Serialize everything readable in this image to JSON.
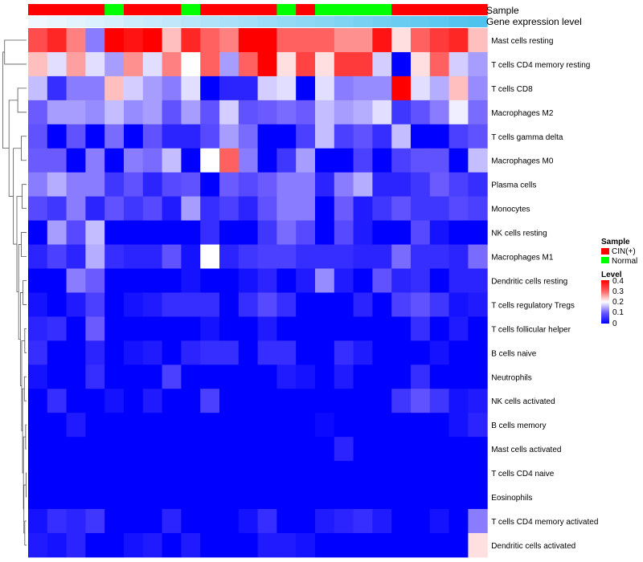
{
  "chart_data": {
    "type": "heatmap",
    "title": "",
    "annotation_tracks": [
      {
        "name": "Sample",
        "values": [
          "CIN(+)",
          "CIN(+)",
          "CIN(+)",
          "CIN(+)",
          "Normal",
          "CIN(+)",
          "CIN(+)",
          "CIN(+)",
          "Normal",
          "CIN(+)",
          "CIN(+)",
          "CIN(+)",
          "CIN(+)",
          "Normal",
          "CIN(+)",
          "Normal",
          "Normal",
          "Normal",
          "Normal",
          "CIN(+)",
          "CIN(+)",
          "CIN(+)",
          "CIN(+)",
          "CIN(+)"
        ]
      },
      {
        "name": "Gene expression level",
        "values": [
          0.0,
          0.04,
          0.09,
          0.13,
          0.17,
          0.22,
          0.26,
          0.3,
          0.35,
          0.39,
          0.43,
          0.48,
          0.52,
          0.57,
          0.61,
          0.65,
          0.7,
          0.74,
          0.78,
          0.83,
          0.87,
          0.91,
          0.96,
          1.0
        ]
      }
    ],
    "rows": [
      "Mast cells resting",
      "T cells CD4 memory resting",
      "T cells CD8",
      "Macrophages M2",
      "T cells gamma delta",
      "Macrophages M0",
      "Plasma cells",
      "Monocytes",
      "NK cells resting",
      "Macrophages M1",
      "Dendritic cells resting",
      "T cells regulatory  Tregs",
      "T cells follicular helper",
      "B cells naive",
      "Neutrophils",
      "NK cells activated",
      "B cells memory",
      "Mast cells activated",
      "T cells CD4 naive",
      "Eosinophils",
      "T cells CD4 memory activated",
      "Dendritic cells activated"
    ],
    "values": [
      [
        0.32,
        0.36,
        0.28,
        0.12,
        0.4,
        0.38,
        0.4,
        0.24,
        0.36,
        0.3,
        0.28,
        0.4,
        0.4,
        0.3,
        0.3,
        0.3,
        0.27,
        0.27,
        0.38,
        0.22,
        0.3,
        0.34,
        0.36,
        0.24
      ],
      [
        0.24,
        0.18,
        0.26,
        0.18,
        0.14,
        0.27,
        0.18,
        0.28,
        0.2,
        0.3,
        0.14,
        0.3,
        0.4,
        0.22,
        0.33,
        0.22,
        0.34,
        0.34,
        0.17,
        0.0,
        0.22,
        0.3,
        0.17,
        0.14
      ],
      [
        0.16,
        0.05,
        0.12,
        0.12,
        0.24,
        0.17,
        0.14,
        0.12,
        0.18,
        0.0,
        0.04,
        0.04,
        0.17,
        0.18,
        0.0,
        0.18,
        0.12,
        0.13,
        0.13,
        0.4,
        0.18,
        0.15,
        0.24,
        0.13
      ],
      [
        0.1,
        0.14,
        0.14,
        0.13,
        0.16,
        0.13,
        0.14,
        0.09,
        0.14,
        0.09,
        0.17,
        0.09,
        0.1,
        0.11,
        0.1,
        0.16,
        0.14,
        0.15,
        0.18,
        0.06,
        0.09,
        0.12,
        0.19,
        0.11
      ],
      [
        0.09,
        0.0,
        0.09,
        0.0,
        0.11,
        0.0,
        0.09,
        0.04,
        0.04,
        0.08,
        0.14,
        0.11,
        0.0,
        0.0,
        0.07,
        0.16,
        0.07,
        0.09,
        0.05,
        0.16,
        0.0,
        0.0,
        0.07,
        0.09
      ],
      [
        0.1,
        0.1,
        0.0,
        0.12,
        0.0,
        0.12,
        0.11,
        0.16,
        0.0,
        0.2,
        0.3,
        0.12,
        0.0,
        0.06,
        0.14,
        0.0,
        0.0,
        0.07,
        0.0,
        0.07,
        0.09,
        0.09,
        0.0,
        0.16
      ],
      [
        0.12,
        0.15,
        0.12,
        0.12,
        0.06,
        0.09,
        0.04,
        0.08,
        0.09,
        0.0,
        0.1,
        0.08,
        0.1,
        0.12,
        0.12,
        0.04,
        0.12,
        0.15,
        0.04,
        0.04,
        0.06,
        0.1,
        0.07,
        0.05
      ],
      [
        0.08,
        0.06,
        0.12,
        0.04,
        0.09,
        0.06,
        0.08,
        0.03,
        0.14,
        0.05,
        0.07,
        0.04,
        0.09,
        0.12,
        0.12,
        0.0,
        0.1,
        0.03,
        0.06,
        0.09,
        0.06,
        0.06,
        0.08,
        0.07
      ],
      [
        0.0,
        0.14,
        0.08,
        0.16,
        0.0,
        0.0,
        0.0,
        0.0,
        0.0,
        0.05,
        0.0,
        0.0,
        0.06,
        0.11,
        0.08,
        0.0,
        0.08,
        0.03,
        0.0,
        0.0,
        0.08,
        0.02,
        0.0,
        0.0
      ],
      [
        0.04,
        0.07,
        0.04,
        0.15,
        0.05,
        0.04,
        0.04,
        0.09,
        0.02,
        0.2,
        0.04,
        0.06,
        0.07,
        0.07,
        0.05,
        0.05,
        0.05,
        0.04,
        0.04,
        0.11,
        0.05,
        0.05,
        0.04,
        0.11
      ],
      [
        0.0,
        0.0,
        0.12,
        0.1,
        0.0,
        0.0,
        0.0,
        0.0,
        0.02,
        0.0,
        0.0,
        0.02,
        0.04,
        0.0,
        0.03,
        0.13,
        0.03,
        0.0,
        0.09,
        0.04,
        0.05,
        0.0,
        0.04,
        0.04
      ],
      [
        0.02,
        0.0,
        0.03,
        0.07,
        0.0,
        0.02,
        0.03,
        0.05,
        0.05,
        0.05,
        0.0,
        0.05,
        0.08,
        0.05,
        0.0,
        0.0,
        0.0,
        0.04,
        0.0,
        0.07,
        0.09,
        0.06,
        0.02,
        0.03
      ],
      [
        0.04,
        0.05,
        0.0,
        0.1,
        0.0,
        0.0,
        0.0,
        0.0,
        0.0,
        0.02,
        0.0,
        0.0,
        0.03,
        0.0,
        0.0,
        0.0,
        0.0,
        0.0,
        0.0,
        0.0,
        0.05,
        0.0,
        0.03,
        0.0
      ],
      [
        0.05,
        0.0,
        0.0,
        0.04,
        0.0,
        0.02,
        0.03,
        0.0,
        0.04,
        0.05,
        0.05,
        0.0,
        0.05,
        0.05,
        0.0,
        0.0,
        0.05,
        0.03,
        0.0,
        0.0,
        0.0,
        0.02,
        0.0,
        0.0
      ],
      [
        0.02,
        0.0,
        0.0,
        0.05,
        0.0,
        0.0,
        0.0,
        0.07,
        0.0,
        0.0,
        0.0,
        0.0,
        0.0,
        0.03,
        0.02,
        0.0,
        0.03,
        0.0,
        0.0,
        0.0,
        0.05,
        0.0,
        0.0,
        0.0
      ],
      [
        0.0,
        0.05,
        0.0,
        0.0,
        0.02,
        0.0,
        0.03,
        0.0,
        0.0,
        0.07,
        0.0,
        0.0,
        0.0,
        0.0,
        0.0,
        0.0,
        0.0,
        0.0,
        0.0,
        0.06,
        0.09,
        0.06,
        0.02,
        0.03
      ],
      [
        0.0,
        0.0,
        0.03,
        0.0,
        0.0,
        0.0,
        0.0,
        0.0,
        0.0,
        0.0,
        0.0,
        0.0,
        0.0,
        0.0,
        0.0,
        0.01,
        0.0,
        0.0,
        0.0,
        0.0,
        0.0,
        0.0,
        0.02,
        0.04
      ],
      [
        0.0,
        0.0,
        0.0,
        0.0,
        0.0,
        0.0,
        0.0,
        0.0,
        0.0,
        0.0,
        0.0,
        0.0,
        0.0,
        0.0,
        0.0,
        0.0,
        0.04,
        0.0,
        0.0,
        0.0,
        0.0,
        0.0,
        0.0,
        0.0
      ],
      [
        0.0,
        0.0,
        0.0,
        0.0,
        0.0,
        0.0,
        0.0,
        0.0,
        0.0,
        0.0,
        0.0,
        0.0,
        0.0,
        0.0,
        0.0,
        0.0,
        0.0,
        0.0,
        0.0,
        0.0,
        0.0,
        0.0,
        0.0,
        0.0
      ],
      [
        0.0,
        0.0,
        0.0,
        0.0,
        0.0,
        0.0,
        0.0,
        0.0,
        0.0,
        0.0,
        0.0,
        0.0,
        0.0,
        0.0,
        0.0,
        0.0,
        0.0,
        0.0,
        0.0,
        0.0,
        0.0,
        0.0,
        0.0,
        0.0
      ],
      [
        0.02,
        0.05,
        0.04,
        0.06,
        0.0,
        0.0,
        0.0,
        0.04,
        0.0,
        0.0,
        0.0,
        0.02,
        0.05,
        0.0,
        0.0,
        0.03,
        0.04,
        0.05,
        0.03,
        0.0,
        0.0,
        0.02,
        0.0,
        0.12
      ],
      [
        0.03,
        0.02,
        0.04,
        0.0,
        0.0,
        0.02,
        0.03,
        0.0,
        0.03,
        0.0,
        0.0,
        0.0,
        0.03,
        0.03,
        0.02,
        0.0,
        0.0,
        0.0,
        0.0,
        0.0,
        0.0,
        0.0,
        0.0,
        0.22
      ]
    ],
    "dendrogram": [
      [
        0,
        1,
        0.5
      ],
      [
        2,
        3,
        0.2
      ],
      [
        4,
        5,
        0.12
      ],
      [
        6,
        7,
        0.1
      ],
      [
        8,
        9,
        0.12
      ],
      [
        10,
        11,
        0.08
      ],
      [
        12,
        13,
        0.04
      ],
      [
        14,
        15,
        0.05
      ],
      [
        16,
        17,
        0.02
      ],
      [
        18,
        19,
        0.01
      ],
      [
        20,
        21,
        0.04
      ]
    ],
    "color_scale": {
      "stops": [
        0,
        0.1,
        0.2,
        0.3,
        0.4
      ],
      "colors": [
        "#0000ff",
        "#6b5bff",
        "#ffffff",
        "#ff6060",
        "#ff0000"
      ]
    },
    "legend": {
      "position": "right",
      "sample_title": "Sample",
      "sample_entries": [
        {
          "label": "CIN(+)",
          "color": "#ff0000"
        },
        {
          "label": "Normal",
          "color": "#00ff00"
        }
      ],
      "level_title": "Level",
      "level_ticks": [
        "0.4",
        "0.3",
        "0.2",
        "0.1",
        "0"
      ]
    },
    "annotation_colors": {
      "low": "#f0f8ff",
      "high": "#4fc3ee"
    }
  }
}
